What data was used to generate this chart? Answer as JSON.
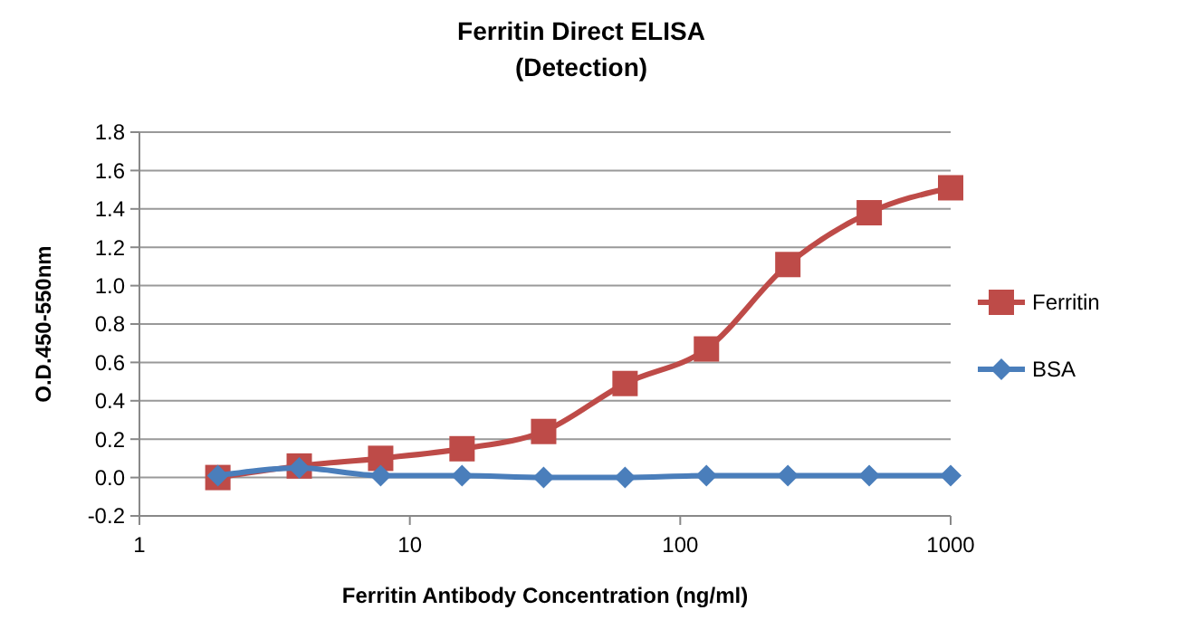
{
  "chart_data": {
    "type": "line",
    "title": "Ferritin Direct ELISA",
    "subtitle": "(Detection)",
    "xlabel": "Ferritin  Antibody Concentration (ng/ml)",
    "ylabel": "O.D.450-550nm",
    "x": [
      1.95,
      3.9,
      7.8,
      15.6,
      31.25,
      62.5,
      125,
      250,
      500,
      1000
    ],
    "series": [
      {
        "name": "Ferritin",
        "color": "#be4b48",
        "marker": "square",
        "values": [
          0.0,
          0.06,
          0.1,
          0.15,
          0.24,
          0.49,
          0.67,
          1.11,
          1.38,
          1.51
        ]
      },
      {
        "name": "BSA",
        "color": "#4a7ebb",
        "marker": "diamond",
        "values": [
          0.01,
          0.05,
          0.01,
          0.01,
          0.0,
          0.0,
          0.01,
          0.01,
          0.01,
          0.01
        ]
      }
    ],
    "log": "x",
    "xlim": [
      1,
      1000
    ],
    "xticks": [
      1,
      10,
      100,
      1000
    ],
    "ylim": [
      -0.2,
      1.8
    ],
    "yticks": [
      {
        "value": -0.2,
        "label": "-0.2"
      },
      {
        "value": 0,
        "label": "0.0"
      },
      {
        "value": 0.2,
        "label": "0.2"
      },
      {
        "value": 0.4,
        "label": "0.4"
      },
      {
        "value": 0.6,
        "label": "0.6"
      },
      {
        "value": 0.8,
        "label": "0.8"
      },
      {
        "value": 1,
        "label": "1.0"
      },
      {
        "value": 1.2,
        "label": "1.2"
      },
      {
        "value": 1.4,
        "label": "1.4"
      },
      {
        "value": 1.6,
        "label": "1.6"
      },
      {
        "value": 1.8,
        "label": "1.8"
      }
    ],
    "grid": "y",
    "legend": "right",
    "line_style": "solid"
  }
}
